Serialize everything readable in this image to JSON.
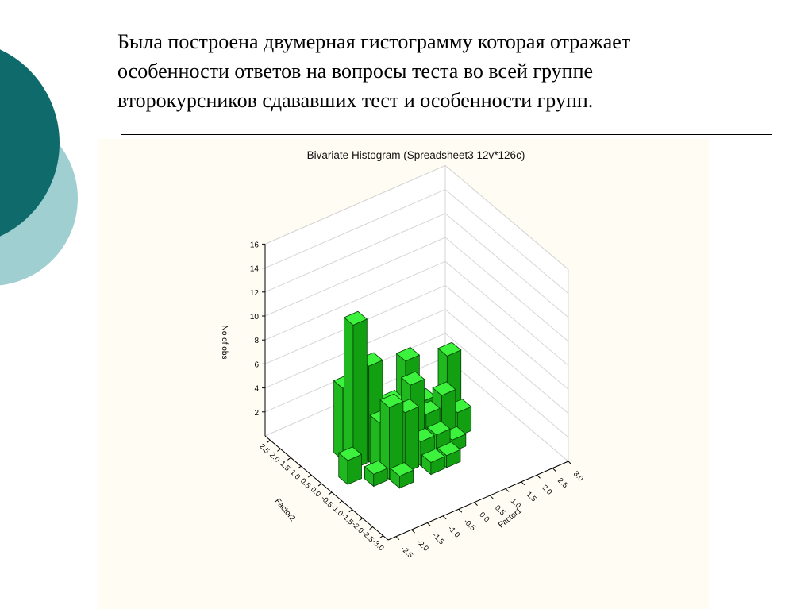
{
  "slide": {
    "lines": [
      "Была построена двумерная гистограмму которая отражает",
      "особенности ответов на вопросы теста во всей группе",
      "второкурсников сдававших тест и особенности групп."
    ]
  },
  "colors": {
    "teal": "#0f6b6b",
    "light_teal": "#9fcfd0",
    "bar": "#22dd22",
    "panel": "#fffdf3"
  },
  "chart_data": {
    "type": "bar3d",
    "title": "Bivariate Histogram (Spreadsheet3 12v*126c)",
    "zlabel": "No of obs",
    "xlabel": "Factor1",
    "ylabel": "Factor2",
    "zlim": [
      0,
      16
    ],
    "z_ticks": [
      "2",
      "4",
      "6",
      "8",
      "10",
      "12",
      "14",
      "16"
    ],
    "factor1_ticks": [
      "-2.5",
      "-2.0",
      "-1.5",
      "-1.0",
      "-0.5",
      "0.0",
      "0.5",
      "1.0",
      "1.5",
      "2.0",
      "2.5",
      "3.0"
    ],
    "factor2_ticks": [
      "2.5",
      "2.0",
      "1.5",
      "1.0",
      "0.5",
      "0.0",
      "-0.5",
      "-1.0",
      "-1.5",
      "-2.0",
      "-2.5",
      "-3.0"
    ],
    "bars": [
      {
        "f1": -1.5,
        "f2": 0.25,
        "count": 12
      },
      {
        "f1": -1.5,
        "f2": -0.75,
        "count": 1
      },
      {
        "f1": -2.0,
        "f2": -0.25,
        "count": 2
      },
      {
        "f1": -1.0,
        "f2": 0.25,
        "count": 8
      },
      {
        "f1": -1.5,
        "f2": 0.75,
        "count": 6
      },
      {
        "f1": -1.0,
        "f2": -0.25,
        "count": 4
      },
      {
        "f1": -0.5,
        "f2": 0.25,
        "count": 2
      },
      {
        "f1": -1.0,
        "f2": -0.75,
        "count": 6
      },
      {
        "f1": -0.5,
        "f2": -0.25,
        "count": 3
      },
      {
        "f1": 0.0,
        "f2": 0.75,
        "count": 3
      },
      {
        "f1": -0.5,
        "f2": -0.75,
        "count": 5
      },
      {
        "f1": 0.5,
        "f2": 0.75,
        "count": 6
      },
      {
        "f1": 0.0,
        "f2": -0.25,
        "count": 6
      },
      {
        "f1": 0.5,
        "f2": 0.25,
        "count": 2
      },
      {
        "f1": 1.0,
        "f2": 0.75,
        "count": 2
      },
      {
        "f1": 0.5,
        "f2": -0.25,
        "count": 3
      },
      {
        "f1": 1.0,
        "f2": 0.25,
        "count": 1
      },
      {
        "f1": -1.0,
        "f2": -1.25,
        "count": 1
      },
      {
        "f1": 0.0,
        "f2": -0.75,
        "count": 2
      },
      {
        "f1": 0.5,
        "f2": -0.75,
        "count": 2
      },
      {
        "f1": 1.0,
        "f2": -0.25,
        "count": 4
      },
      {
        "f1": 1.5,
        "f2": 0.25,
        "count": 6
      },
      {
        "f1": 1.0,
        "f2": -0.75,
        "count": 1
      },
      {
        "f1": 1.5,
        "f2": -0.25,
        "count": 2
      },
      {
        "f1": 0.0,
        "f2": -1.25,
        "count": 1
      },
      {
        "f1": 0.5,
        "f2": -1.25,
        "count": 1
      }
    ]
  }
}
